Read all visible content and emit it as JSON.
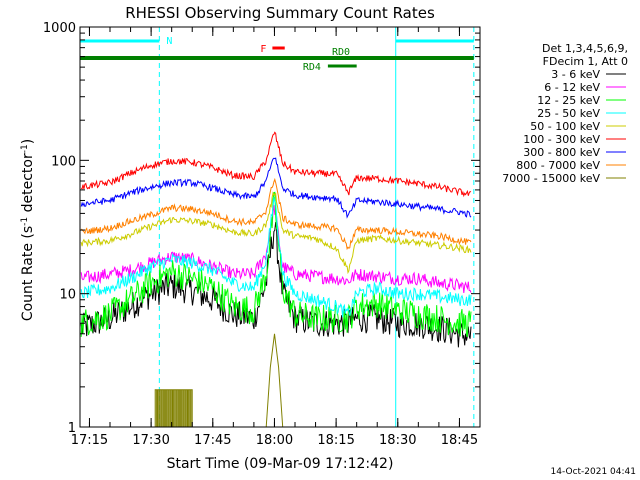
{
  "chart_data": {
    "type": "line",
    "title": "RHESSI Observing Summary Count Rates",
    "xlabel": "Start Time (09-Mar-09 17:12:42)",
    "ylabel": "Count Rate (s⁻¹ detector⁻¹)",
    "ylabel_parts": [
      "Count Rate (s",
      "-1",
      " detector",
      "-1",
      ")"
    ],
    "y_scale": "log",
    "ylim": [
      1,
      1000
    ],
    "xlim": [
      "17:12:42",
      "18:50:00"
    ],
    "x_ticks": [
      "17:15",
      "17:30",
      "17:45",
      "18:00",
      "18:15",
      "18:30",
      "18:45"
    ],
    "y_ticks": [
      {
        "value": 1,
        "label": "1"
      },
      {
        "value": 10,
        "label": "10"
      },
      {
        "value": 100,
        "label": "100"
      },
      {
        "value": 1000,
        "label": "1000"
      }
    ],
    "footer": "14-Oct-2021 04:41",
    "legend": {
      "placement": "right",
      "header": [
        "Det 1,3,4,5,6,9,",
        "FDecim 1, Att 0"
      ]
    },
    "flags": [
      {
        "label": "N",
        "color": "#00ffff",
        "segments": [
          [
            "17:12:42",
            "17:32:00"
          ],
          [
            "18:29:30",
            "18:48:30"
          ]
        ]
      },
      {
        "label": "F",
        "color": "#ff0000",
        "segments": [
          [
            "17:59:30",
            "18:02:30"
          ]
        ]
      },
      {
        "label": "RD0",
        "color": "#008000",
        "segments": [
          [
            "17:12:42",
            "18:48:30"
          ]
        ]
      },
      {
        "label": "RD4",
        "color": "#008000",
        "segments": [
          [
            "18:13:00",
            "18:20:00"
          ]
        ]
      }
    ],
    "vlines": [
      {
        "time": "17:12:42",
        "color": "#00ffff",
        "style": "solid"
      },
      {
        "time": "17:32:00",
        "color": "#00ffff",
        "style": "dashed"
      },
      {
        "time": "18:29:30",
        "color": "#00ffff",
        "style": "solid"
      },
      {
        "time": "18:48:30",
        "color": "#00ffff",
        "style": "dashed"
      }
    ],
    "series": [
      {
        "name": "3 - 6 keV",
        "color": "#000000",
        "points": [
          [
            "17:13",
            5.5
          ],
          [
            "17:20",
            6.5
          ],
          [
            "17:25",
            8
          ],
          [
            "17:30",
            10
          ],
          [
            "17:35",
            11.5
          ],
          [
            "17:40",
            10.5
          ],
          [
            "17:45",
            9
          ],
          [
            "17:50",
            7
          ],
          [
            "17:55",
            6.5
          ],
          [
            "17:58",
            12
          ],
          [
            "18:00",
            33
          ],
          [
            "18:02",
            10
          ],
          [
            "18:05",
            6.5
          ],
          [
            "18:10",
            6
          ],
          [
            "18:15",
            6
          ],
          [
            "18:18",
            6
          ],
          [
            "18:20",
            6.5
          ],
          [
            "18:25",
            6.5
          ],
          [
            "18:30",
            6
          ],
          [
            "18:35",
            6
          ],
          [
            "18:40",
            5.5
          ],
          [
            "18:45",
            5
          ],
          [
            "18:48",
            4.8
          ]
        ]
      },
      {
        "name": "6 - 12 keV",
        "color": "#ff00ff",
        "points": [
          [
            "17:13",
            13
          ],
          [
            "17:20",
            14
          ],
          [
            "17:25",
            15
          ],
          [
            "17:30",
            17
          ],
          [
            "17:35",
            19
          ],
          [
            "17:40",
            18
          ],
          [
            "17:45",
            16
          ],
          [
            "17:50",
            14
          ],
          [
            "17:55",
            14
          ],
          [
            "17:58",
            20
          ],
          [
            "18:00",
            45
          ],
          [
            "18:02",
            16
          ],
          [
            "18:05",
            14
          ],
          [
            "18:10",
            13.5
          ],
          [
            "18:15",
            13
          ],
          [
            "18:18",
            12.5
          ],
          [
            "18:20",
            14
          ],
          [
            "18:25",
            13.5
          ],
          [
            "18:30",
            13
          ],
          [
            "18:35",
            13
          ],
          [
            "18:40",
            12
          ],
          [
            "18:45",
            11.5
          ],
          [
            "18:48",
            11
          ]
        ]
      },
      {
        "name": "12 - 25 keV",
        "color": "#00ff00",
        "points": [
          [
            "17:13",
            6
          ],
          [
            "17:20",
            7
          ],
          [
            "17:25",
            9
          ],
          [
            "17:30",
            12
          ],
          [
            "17:35",
            14.5
          ],
          [
            "17:40",
            13
          ],
          [
            "17:45",
            11
          ],
          [
            "17:50",
            8
          ],
          [
            "17:55",
            7.5
          ],
          [
            "17:58",
            14
          ],
          [
            "18:00",
            50
          ],
          [
            "18:02",
            11
          ],
          [
            "18:05",
            7
          ],
          [
            "18:10",
            6.5
          ],
          [
            "18:15",
            6.5
          ],
          [
            "18:18",
            6.5
          ],
          [
            "18:20",
            8
          ],
          [
            "18:25",
            8.5
          ],
          [
            "18:30",
            7.5
          ],
          [
            "18:35",
            7
          ],
          [
            "18:40",
            6.5
          ],
          [
            "18:45",
            6
          ],
          [
            "18:48",
            6
          ]
        ]
      },
      {
        "name": "25 - 50 keV",
        "color": "#00ffff",
        "points": [
          [
            "17:13",
            10
          ],
          [
            "17:20",
            11
          ],
          [
            "17:25",
            13
          ],
          [
            "17:30",
            16
          ],
          [
            "17:35",
            18
          ],
          [
            "17:40",
            17
          ],
          [
            "17:45",
            15
          ],
          [
            "17:50",
            12
          ],
          [
            "17:55",
            11
          ],
          [
            "17:58",
            18
          ],
          [
            "18:00",
            55
          ],
          [
            "18:02",
            14
          ],
          [
            "18:05",
            10
          ],
          [
            "18:10",
            9
          ],
          [
            "18:15",
            8
          ],
          [
            "18:18",
            7
          ],
          [
            "18:20",
            10
          ],
          [
            "18:25",
            11
          ],
          [
            "18:30",
            10
          ],
          [
            "18:35",
            10
          ],
          [
            "18:40",
            9.5
          ],
          [
            "18:45",
            9
          ],
          [
            "18:48",
            9
          ]
        ]
      },
      {
        "name": "50 - 100 keV",
        "color": "#cccc00",
        "points": [
          [
            "17:13",
            24
          ],
          [
            "17:20",
            25
          ],
          [
            "17:25",
            28
          ],
          [
            "17:30",
            32
          ],
          [
            "17:35",
            36
          ],
          [
            "17:40",
            35
          ],
          [
            "17:45",
            33
          ],
          [
            "17:50",
            29
          ],
          [
            "17:55",
            28
          ],
          [
            "17:58",
            33
          ],
          [
            "18:00",
            60
          ],
          [
            "18:02",
            30
          ],
          [
            "18:05",
            27
          ],
          [
            "18:10",
            26
          ],
          [
            "18:15",
            22
          ],
          [
            "18:18",
            15
          ],
          [
            "18:20",
            25
          ],
          [
            "18:25",
            26
          ],
          [
            "18:30",
            25
          ],
          [
            "18:35",
            24
          ],
          [
            "18:40",
            23
          ],
          [
            "18:45",
            22
          ],
          [
            "18:48",
            21
          ]
        ]
      },
      {
        "name": "100 - 300 keV",
        "color": "#ff0000",
        "points": [
          [
            "17:13",
            63
          ],
          [
            "17:20",
            68
          ],
          [
            "17:25",
            80
          ],
          [
            "17:30",
            92
          ],
          [
            "17:35",
            99
          ],
          [
            "17:40",
            97
          ],
          [
            "17:45",
            88
          ],
          [
            "17:50",
            77
          ],
          [
            "17:55",
            75
          ],
          [
            "17:58",
            100
          ],
          [
            "18:00",
            165
          ],
          [
            "18:02",
            95
          ],
          [
            "18:05",
            82
          ],
          [
            "18:10",
            80
          ],
          [
            "18:15",
            79
          ],
          [
            "18:18",
            57
          ],
          [
            "18:20",
            74
          ],
          [
            "18:25",
            73
          ],
          [
            "18:30",
            70
          ],
          [
            "18:35",
            67
          ],
          [
            "18:40",
            63
          ],
          [
            "18:45",
            58
          ],
          [
            "18:48",
            55
          ]
        ]
      },
      {
        "name": "300 - 800 keV",
        "color": "#0000ff",
        "points": [
          [
            "17:13",
            47
          ],
          [
            "17:20",
            50
          ],
          [
            "17:25",
            57
          ],
          [
            "17:30",
            63
          ],
          [
            "17:35",
            68
          ],
          [
            "17:40",
            68
          ],
          [
            "17:45",
            62
          ],
          [
            "17:50",
            55
          ],
          [
            "17:55",
            53
          ],
          [
            "17:58",
            70
          ],
          [
            "18:00",
            110
          ],
          [
            "18:02",
            62
          ],
          [
            "18:05",
            55
          ],
          [
            "18:10",
            53
          ],
          [
            "18:15",
            52
          ],
          [
            "18:18",
            38
          ],
          [
            "18:20",
            50
          ],
          [
            "18:25",
            49
          ],
          [
            "18:30",
            47
          ],
          [
            "18:35",
            45
          ],
          [
            "18:40",
            43
          ],
          [
            "18:45",
            41
          ],
          [
            "18:48",
            39
          ]
        ]
      },
      {
        "name": "800 - 7000 keV",
        "color": "#ff8000",
        "points": [
          [
            "17:13",
            29
          ],
          [
            "17:20",
            31
          ],
          [
            "17:25",
            35
          ],
          [
            "17:30",
            39
          ],
          [
            "17:35",
            44
          ],
          [
            "17:40",
            43
          ],
          [
            "17:45",
            40
          ],
          [
            "17:50",
            35
          ],
          [
            "17:55",
            34
          ],
          [
            "17:58",
            42
          ],
          [
            "18:00",
            75
          ],
          [
            "18:02",
            37
          ],
          [
            "18:05",
            33
          ],
          [
            "18:10",
            32
          ],
          [
            "18:15",
            31
          ],
          [
            "18:18",
            22
          ],
          [
            "18:20",
            30
          ],
          [
            "18:25",
            30
          ],
          [
            "18:30",
            29
          ],
          [
            "18:35",
            28
          ],
          [
            "18:40",
            27
          ],
          [
            "18:45",
            25
          ],
          [
            "18:48",
            24
          ]
        ]
      },
      {
        "name": "7000 - 15000 keV",
        "color": "#808000",
        "points": [
          [
            "17:31",
            1
          ],
          [
            "17:31",
            1.9
          ],
          [
            "17:40",
            1.9
          ],
          [
            "17:40",
            1
          ],
          [
            "17:58",
            1
          ],
          [
            "17:59",
            2.8
          ],
          [
            "18:00",
            5
          ],
          [
            "18:01",
            2.8
          ],
          [
            "18:02",
            1
          ]
        ]
      }
    ]
  }
}
